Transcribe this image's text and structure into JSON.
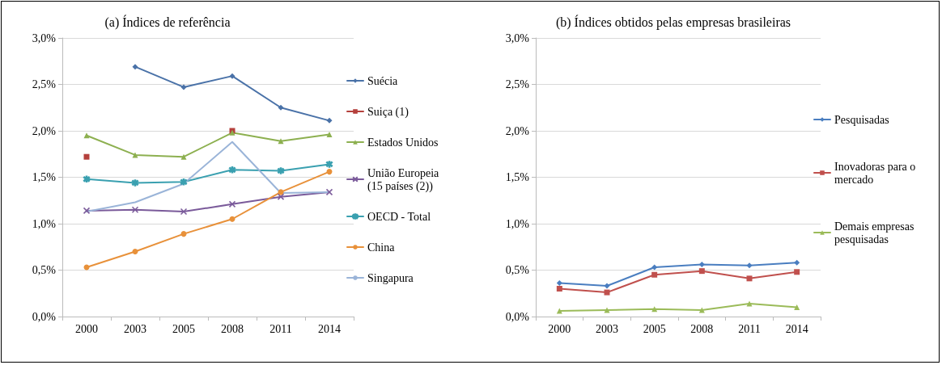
{
  "chart_data": [
    {
      "type": "line",
      "title": "(a) Índices de referência",
      "categories": [
        "2000",
        "2003",
        "2005",
        "2008",
        "2011",
        "2014"
      ],
      "ylim": [
        0,
        3
      ],
      "yticks": [
        {
          "value": 0,
          "label": "0,0%"
        },
        {
          "value": 0.5,
          "label": "0,5%"
        },
        {
          "value": 1,
          "label": "1,0%"
        },
        {
          "value": 1.5,
          "label": "1,5%"
        },
        {
          "value": 2,
          "label": "2,0%"
        },
        {
          "value": 2.5,
          "label": "2,5%"
        },
        {
          "value": 3,
          "label": "3,0%"
        }
      ],
      "grid": "y",
      "legend": "right",
      "line_style": "solid",
      "series": [
        {
          "name": "Suécia",
          "color": "#4a72a8",
          "marker": "diamond",
          "values": [
            null,
            2.69,
            2.47,
            2.59,
            2.25,
            2.11
          ]
        },
        {
          "name": "Suiça (1)",
          "color": "#b5403c",
          "marker": "square",
          "values": [
            1.72,
            null,
            null,
            2.0,
            null,
            null
          ]
        },
        {
          "name": "Estados Unidos",
          "color": "#8db050",
          "marker": "triangle",
          "values": [
            1.95,
            1.74,
            1.72,
            1.98,
            1.89,
            1.96
          ]
        },
        {
          "name": "União Europeia (15 países (2))",
          "color": "#7a5a9a",
          "marker": "cross",
          "values": [
            1.14,
            1.15,
            1.13,
            1.21,
            1.29,
            1.34
          ]
        },
        {
          "name": "OECD - Total",
          "color": "#3aa0b0",
          "marker": "star",
          "values": [
            1.48,
            1.44,
            1.45,
            1.58,
            1.57,
            1.64
          ]
        },
        {
          "name": "China",
          "color": "#e8913a",
          "marker": "circle",
          "values": [
            0.53,
            0.7,
            0.89,
            1.05,
            1.34,
            1.56
          ]
        },
        {
          "name": "Singapura",
          "color": "#9ab4d8",
          "marker": "none",
          "values": [
            1.13,
            1.23,
            1.43,
            1.88,
            1.33,
            1.34
          ]
        }
      ]
    },
    {
      "type": "line",
      "title": "(b) Índices obtidos pelas empresas brasileiras",
      "categories": [
        "2000",
        "2003",
        "2005",
        "2008",
        "2011",
        "2014"
      ],
      "ylim": [
        0,
        3
      ],
      "yticks": [
        {
          "value": 0,
          "label": "0,0%"
        },
        {
          "value": 0.5,
          "label": "0,5%"
        },
        {
          "value": 1,
          "label": "1,0%"
        },
        {
          "value": 1.5,
          "label": "1,5%"
        },
        {
          "value": 2,
          "label": "2,0%"
        },
        {
          "value": 2.5,
          "label": "2,5%"
        },
        {
          "value": 3,
          "label": "3,0%"
        }
      ],
      "grid": "y",
      "legend": "right",
      "line_style": "solid",
      "series": [
        {
          "name": "Pesquisadas",
          "color": "#4a7ec0",
          "marker": "diamond",
          "values": [
            0.36,
            0.33,
            0.53,
            0.56,
            0.55,
            0.58
          ]
        },
        {
          "name": "Inovadoras para o mercado",
          "color": "#c0504d",
          "marker": "square",
          "values": [
            0.3,
            0.26,
            0.45,
            0.49,
            0.41,
            0.48
          ]
        },
        {
          "name": "Demais empresas pesquisadas",
          "color": "#9bbb59",
          "marker": "triangle",
          "values": [
            0.06,
            0.07,
            0.08,
            0.07,
            0.14,
            0.1
          ]
        }
      ]
    }
  ]
}
